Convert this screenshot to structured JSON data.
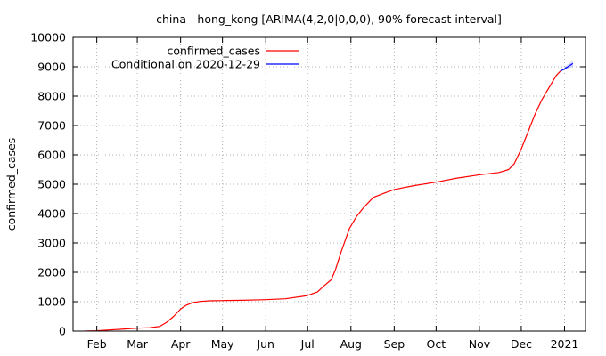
{
  "chart_data": {
    "type": "line",
    "title": "china - hong_kong [ARIMA(4,2,0|0,0,0), 90% forecast interval]",
    "xlabel": "",
    "ylabel": "confirmed_cases",
    "xlim": [
      "2020-01-15",
      "2021-01-16"
    ],
    "ylim": [
      0,
      10000
    ],
    "y_ticks": [
      0,
      1000,
      2000,
      3000,
      4000,
      5000,
      6000,
      7000,
      8000,
      9000,
      10000
    ],
    "x_ticks": [
      {
        "date": "2020-02-01",
        "label": "Feb"
      },
      {
        "date": "2020-03-01",
        "label": "Mar"
      },
      {
        "date": "2020-04-01",
        "label": "Apr"
      },
      {
        "date": "2020-05-01",
        "label": "May"
      },
      {
        "date": "2020-06-01",
        "label": "Jun"
      },
      {
        "date": "2020-07-01",
        "label": "Jul"
      },
      {
        "date": "2020-08-01",
        "label": "Aug"
      },
      {
        "date": "2020-09-01",
        "label": "Sep"
      },
      {
        "date": "2020-10-01",
        "label": "Oct"
      },
      {
        "date": "2020-11-01",
        "label": "Nov"
      },
      {
        "date": "2020-12-01",
        "label": "Dec"
      },
      {
        "date": "2021-01-01",
        "label": "2021"
      }
    ],
    "grid": true,
    "legend_position": "top-left",
    "series": [
      {
        "name": "confirmed_cases",
        "color": "#ff0000",
        "points": [
          [
            "2020-01-23",
            2
          ],
          [
            "2020-02-01",
            13
          ],
          [
            "2020-02-10",
            40
          ],
          [
            "2020-02-20",
            68
          ],
          [
            "2020-03-01",
            100
          ],
          [
            "2020-03-10",
            115
          ],
          [
            "2020-03-17",
            160
          ],
          [
            "2020-03-22",
            300
          ],
          [
            "2020-03-27",
            500
          ],
          [
            "2020-04-01",
            750
          ],
          [
            "2020-04-05",
            880
          ],
          [
            "2020-04-10",
            970
          ],
          [
            "2020-04-15",
            1010
          ],
          [
            "2020-04-22",
            1030
          ],
          [
            "2020-05-01",
            1040
          ],
          [
            "2020-05-15",
            1050
          ],
          [
            "2020-06-01",
            1070
          ],
          [
            "2020-06-15",
            1100
          ],
          [
            "2020-06-30",
            1200
          ],
          [
            "2020-07-08",
            1330
          ],
          [
            "2020-07-13",
            1550
          ],
          [
            "2020-07-18",
            1750
          ],
          [
            "2020-07-21",
            2100
          ],
          [
            "2020-07-25",
            2700
          ],
          [
            "2020-07-31",
            3500
          ],
          [
            "2020-08-05",
            3900
          ],
          [
            "2020-08-10",
            4200
          ],
          [
            "2020-08-17",
            4550
          ],
          [
            "2020-08-25",
            4700
          ],
          [
            "2020-09-01",
            4820
          ],
          [
            "2020-09-15",
            4950
          ],
          [
            "2020-10-01",
            5070
          ],
          [
            "2020-10-15",
            5200
          ],
          [
            "2020-11-01",
            5320
          ],
          [
            "2020-11-15",
            5400
          ],
          [
            "2020-11-22",
            5500
          ],
          [
            "2020-11-26",
            5700
          ],
          [
            "2020-12-01",
            6200
          ],
          [
            "2020-12-06",
            6800
          ],
          [
            "2020-12-11",
            7400
          ],
          [
            "2020-12-16",
            7900
          ],
          [
            "2020-12-21",
            8300
          ],
          [
            "2020-12-26",
            8700
          ],
          [
            "2020-12-29",
            8850
          ]
        ]
      },
      {
        "name": "Conditional on 2020-12-29",
        "color": "#0000ff",
        "points": [
          [
            "2020-12-29",
            8850
          ],
          [
            "2021-01-01",
            8930
          ],
          [
            "2021-01-04",
            9020
          ],
          [
            "2021-01-07",
            9110
          ]
        ],
        "interval_lower": [
          8850,
          8890,
          8950,
          9000
        ],
        "interval_upper": [
          8850,
          8980,
          9090,
          9220
        ]
      }
    ]
  }
}
